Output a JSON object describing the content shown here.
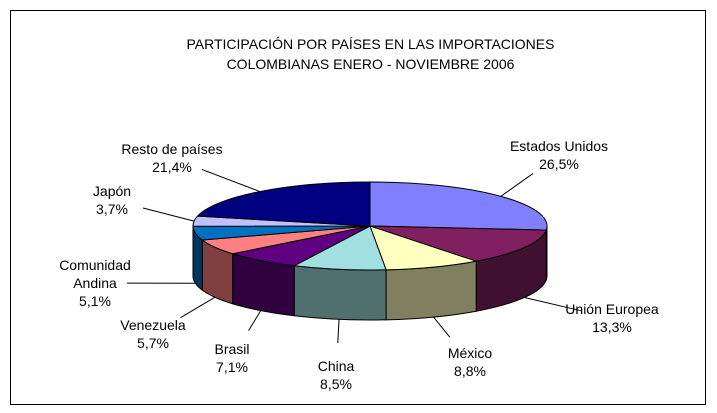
{
  "chart_data": {
    "type": "pie3d",
    "title": [
      "PARTICIPACIÓN POR PAÍSES EN LAS IMPORTACIONES",
      "COLOMBIANAS ENERO - NOVIEMBRE 2006"
    ],
    "categories": [
      "Estados Unidos",
      "Unión Europea",
      "México",
      "China",
      "Brasil",
      "Venezuela",
      "Comunidad Andina",
      "Japón",
      "Resto de países"
    ],
    "values": [
      26.5,
      13.3,
      8.8,
      8.5,
      7.1,
      5.7,
      5.1,
      3.7,
      21.4
    ],
    "value_labels": [
      "26,5%",
      "13,3%",
      "8,8%",
      "8,5%",
      "7,1%",
      "5,7%",
      "5,1%",
      "3,7%",
      "21,4%"
    ],
    "colors": [
      "#8080ff",
      "#802060",
      "#ffffc0",
      "#a0e0e0",
      "#600080",
      "#ff8080",
      "#0070c0",
      "#c0c0ff",
      "#000080"
    ]
  }
}
